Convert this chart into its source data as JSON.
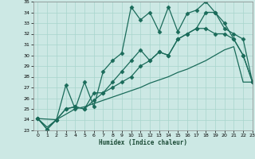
{
  "title": "",
  "xlabel": "Humidex (Indice chaleur)",
  "ylabel": "",
  "bg_color": "#cce8e4",
  "line_color": "#1a6b5a",
  "grid_color": "#a8d5cc",
  "ylim": [
    23,
    35
  ],
  "xlim": [
    -0.5,
    23
  ],
  "yticks": [
    23,
    24,
    25,
    26,
    27,
    28,
    29,
    30,
    31,
    32,
    33,
    34,
    35
  ],
  "xticks": [
    0,
    1,
    2,
    3,
    4,
    5,
    6,
    7,
    8,
    9,
    10,
    11,
    12,
    13,
    14,
    15,
    16,
    17,
    18,
    19,
    20,
    21,
    22,
    23
  ],
  "lines": [
    {
      "x": [
        0,
        1,
        2,
        3,
        4,
        5,
        6,
        7,
        8,
        9,
        10,
        11,
        12,
        13,
        14,
        15,
        16,
        17,
        18,
        19,
        20,
        21,
        22,
        23
      ],
      "y": [
        24.1,
        23.1,
        24.0,
        27.2,
        25.0,
        27.5,
        25.2,
        28.5,
        29.5,
        30.2,
        34.5,
        33.3,
        34.0,
        32.2,
        34.5,
        32.2,
        33.9,
        34.2,
        35.0,
        34.0,
        33.0,
        31.5,
        30.0,
        27.5
      ],
      "marker": "D",
      "markersize": 2.5,
      "linewidth": 0.9
    },
    {
      "x": [
        0,
        1,
        2,
        3,
        4,
        5,
        6,
        7,
        8,
        9,
        10,
        11,
        12,
        13,
        14,
        15,
        16,
        17,
        18,
        19,
        20,
        21,
        22,
        23
      ],
      "y": [
        24.1,
        23.1,
        24.0,
        25.0,
        25.2,
        25.0,
        25.8,
        26.5,
        27.5,
        28.5,
        29.5,
        30.5,
        29.5,
        30.3,
        30.0,
        31.5,
        32.0,
        32.5,
        32.5,
        32.0,
        32.0,
        31.5,
        30.0,
        27.5
      ],
      "marker": "D",
      "markersize": 2.5,
      "linewidth": 0.9
    },
    {
      "x": [
        0,
        2,
        3,
        4,
        5,
        6,
        7,
        8,
        9,
        10,
        11,
        12,
        13,
        14,
        15,
        16,
        17,
        18,
        19,
        20,
        21,
        22,
        23
      ],
      "y": [
        24.1,
        24.0,
        25.0,
        25.2,
        25.0,
        26.5,
        26.5,
        27.0,
        27.5,
        28.0,
        29.0,
        29.5,
        30.3,
        30.0,
        31.5,
        32.0,
        32.5,
        34.0,
        34.0,
        32.5,
        32.0,
        31.5,
        27.5
      ],
      "marker": "D",
      "markersize": 2.5,
      "linewidth": 0.9
    },
    {
      "x": [
        0,
        1,
        2,
        3,
        4,
        5,
        6,
        7,
        8,
        9,
        10,
        11,
        12,
        13,
        14,
        15,
        16,
        17,
        18,
        19,
        20,
        21,
        22,
        23
      ],
      "y": [
        24.1,
        23.3,
        24.0,
        24.5,
        25.0,
        25.2,
        25.5,
        25.8,
        26.1,
        26.4,
        26.7,
        27.0,
        27.4,
        27.7,
        28.0,
        28.4,
        28.7,
        29.1,
        29.5,
        30.0,
        30.5,
        30.8,
        27.5,
        27.5
      ],
      "marker": null,
      "markersize": 0,
      "linewidth": 0.9
    }
  ]
}
